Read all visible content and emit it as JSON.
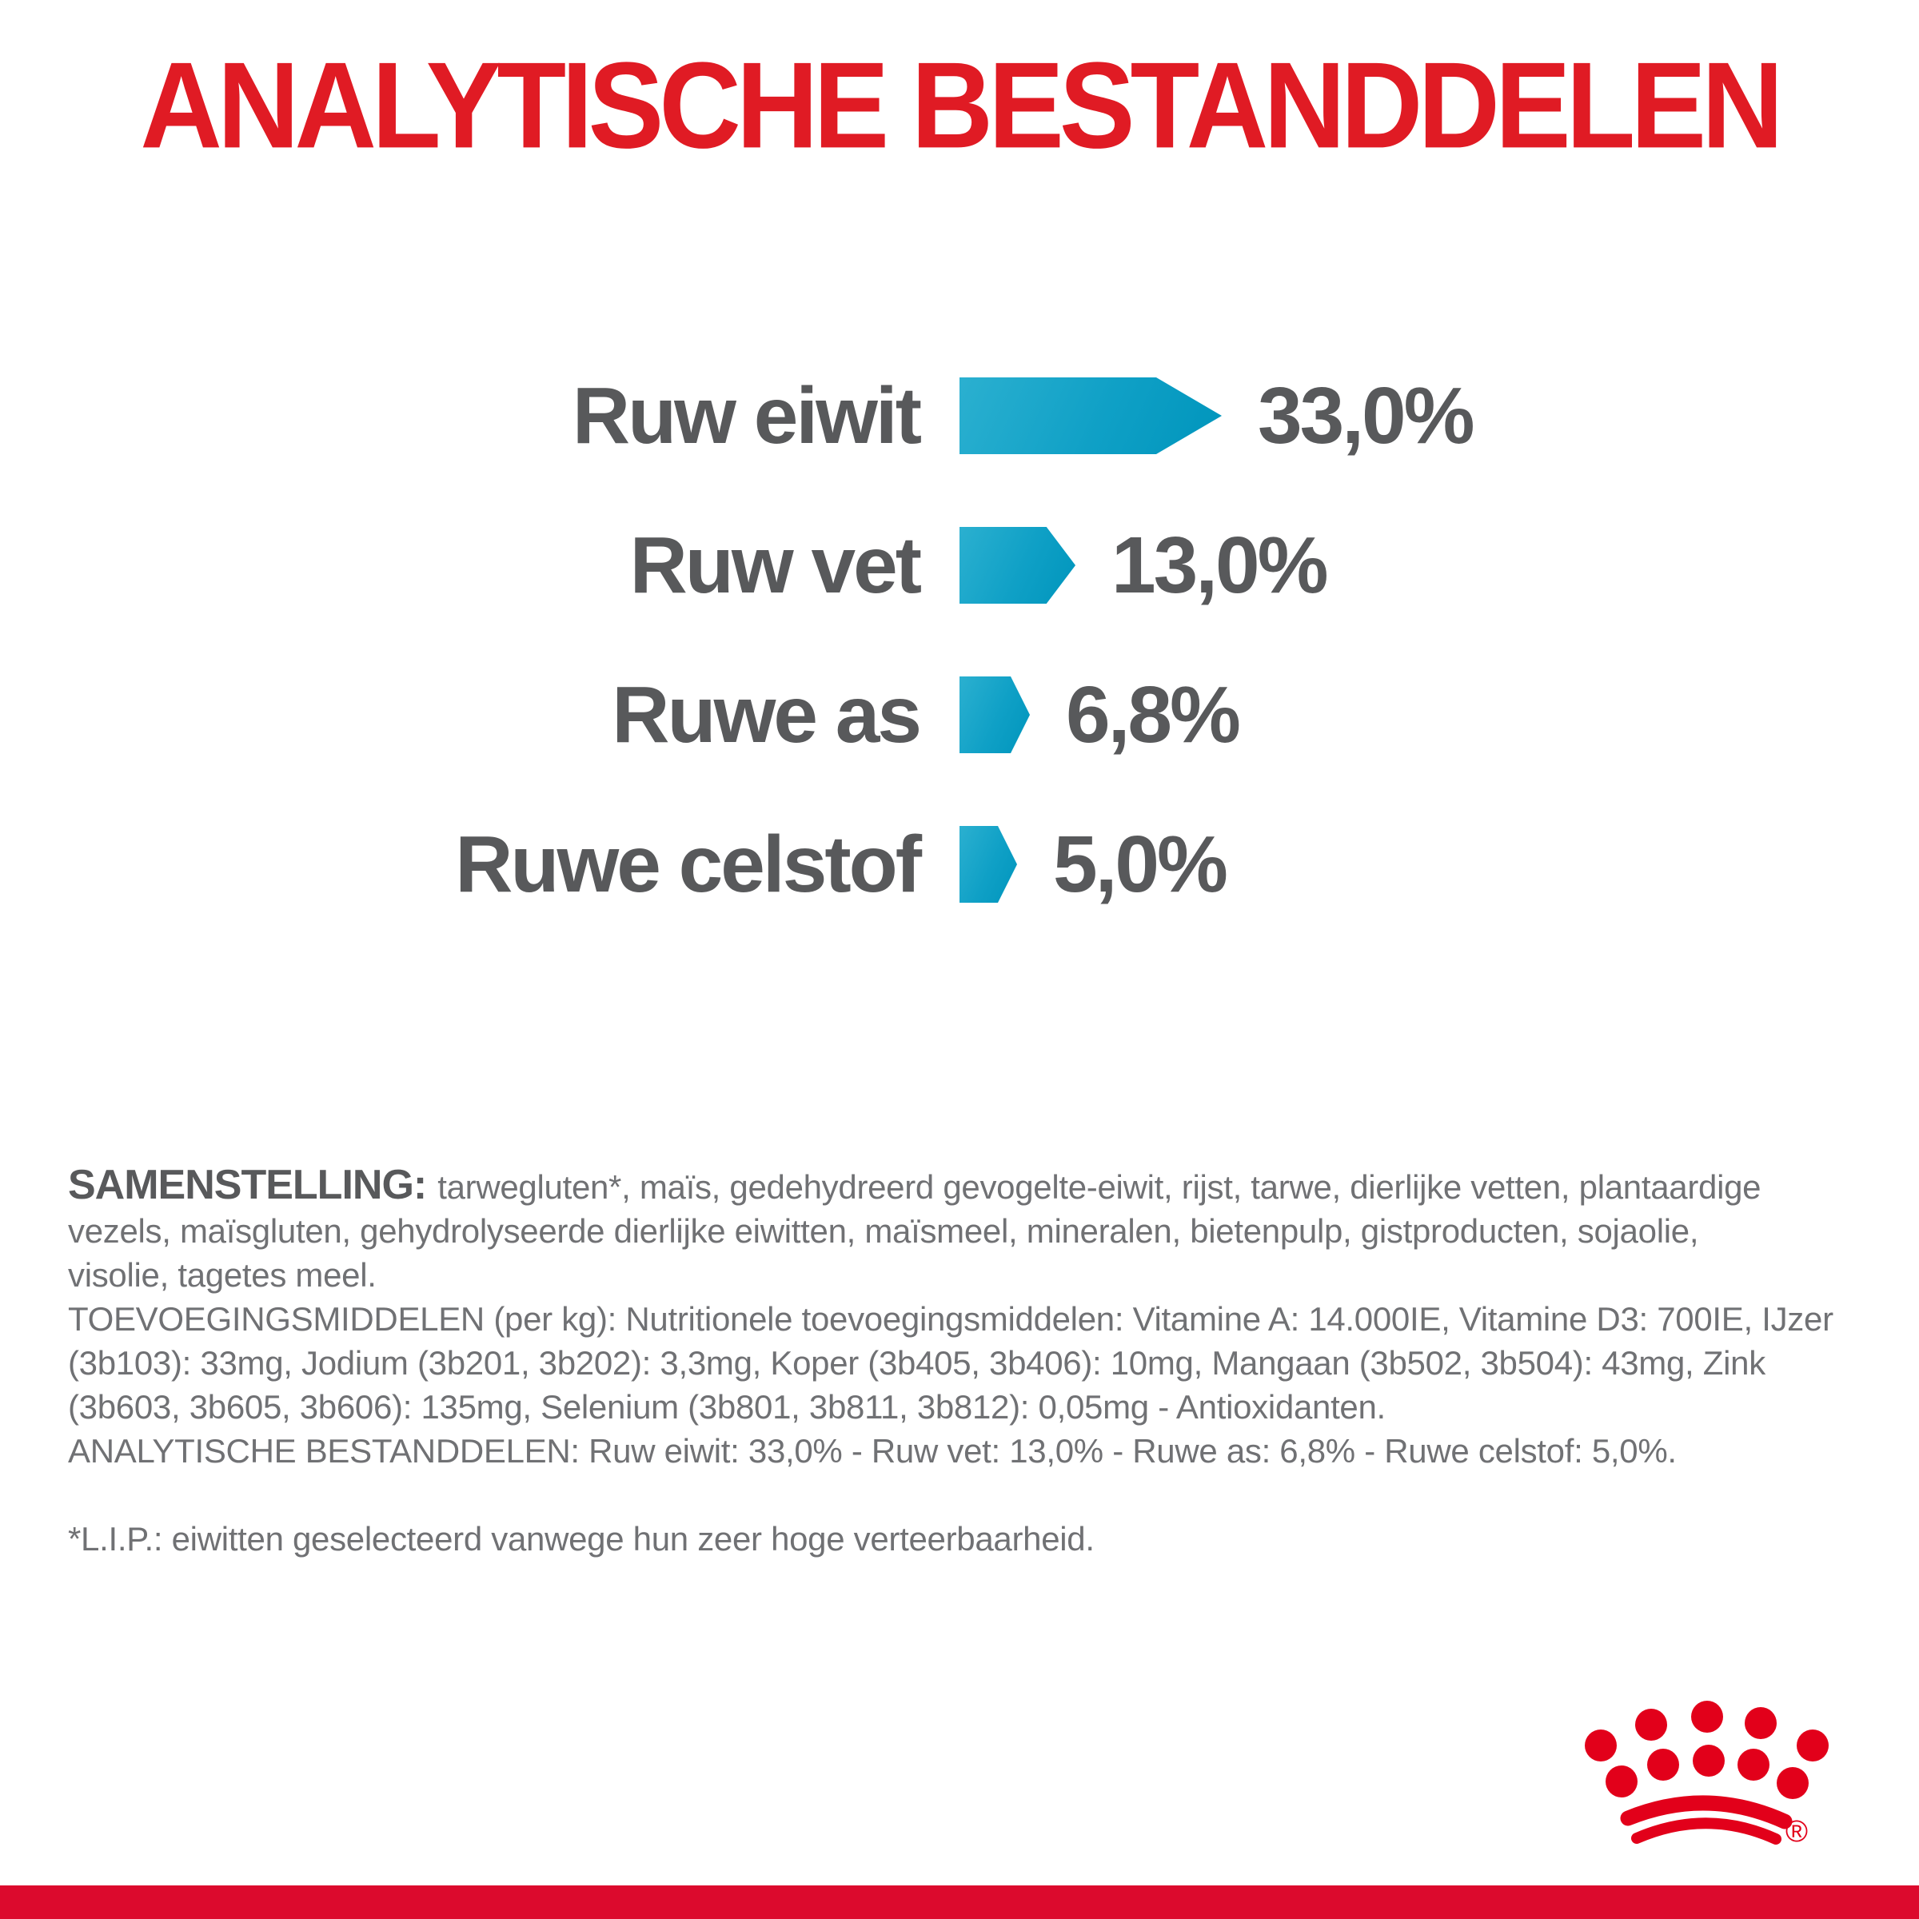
{
  "title": "ANALYTISCHE BESTANDDELEN",
  "chart_data": {
    "type": "bar",
    "orientation": "horizontal",
    "title": "ANALYTISCHE BESTANDDELEN",
    "categories": [
      "Ruw eiwit",
      "Ruw vet",
      "Ruwe as",
      "Ruwe celstof"
    ],
    "values": [
      33.0,
      13.0,
      6.8,
      5.0
    ],
    "value_labels": [
      "33,0%",
      "13,0%",
      "6,8%",
      "5,0%"
    ],
    "unit": "%",
    "xlim": [
      0,
      36
    ],
    "grid": false,
    "legend": "none",
    "bar_color": "#00A3C9",
    "label_color": "#58595B"
  },
  "composition": {
    "heading_bold": "SAMENSTELLING:",
    "line1_rest": "tarwegluten*, maïs, gedehydreerd gevogelte-eiwit, rijst, tarwe, dierlijke vetten, plantaardige",
    "line2": "vezels, maïsgluten, gehydrolyseerde dierlijke eiwitten, maïsmeel, mineralen, bietenpulp, gistproducten, sojaolie,",
    "line3": "visolie, tagetes meel.",
    "line4": "TOEVOEGINGSMIDDELEN (per kg): Nutritionele toevoegingsmiddelen: Vitamine A: 14.000IE, Vitamine D3: 700IE, IJzer",
    "line5": "(3b103): 33mg, Jodium (3b201, 3b202): 3,3mg, Koper (3b405, 3b406): 10mg, Mangaan (3b502, 3b504): 43mg, Zink",
    "line6": "(3b603, 3b605, 3b606): 135mg, Selenium (3b801, 3b811, 3b812): 0,05mg - Antioxidanten.",
    "line7": "ANALYTISCHE BESTANDDELEN: Ruw eiwit: 33,0% - Ruw vet: 13,0% - Ruwe as: 6,8% - Ruwe celstof: 5,0%.",
    "footnote": "*L.I.P.: eiwitten geselecteerd vanwege hun zeer hoge verteerbaarheid."
  },
  "branding": {
    "logo": "royal-canin-crown",
    "registered_mark": "®"
  },
  "colors": {
    "title_red": "#E01B24",
    "brand_red": "#E2001A",
    "bottom_bar_red": "#DC0A2D",
    "bar_teal": "#00A3C9",
    "text_gray": "#707174",
    "label_gray": "#58595B"
  }
}
